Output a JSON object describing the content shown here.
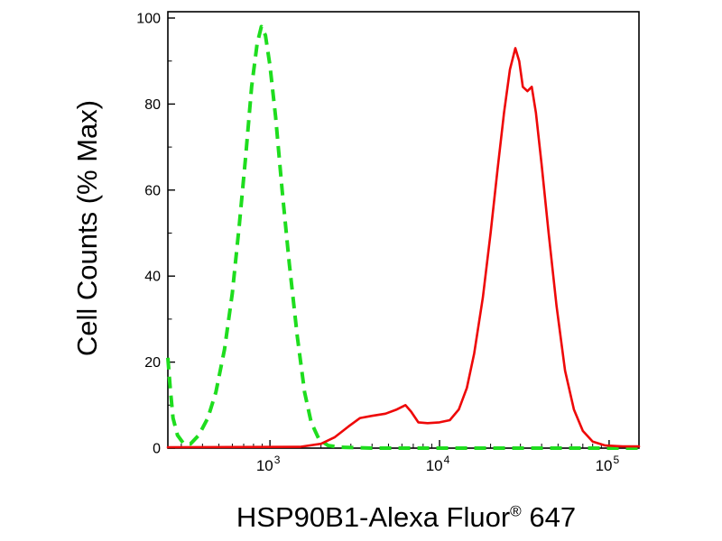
{
  "figure": {
    "background": "#ffffff",
    "axis_color": "#000000"
  },
  "chart_data": {
    "type": "line",
    "title": "",
    "xlabel": "HSP90B1-Alexa Fluor® 647",
    "xlabel_parts": {
      "main": "HSP90B1-Alexa Fluor",
      "sup": "®",
      "suffix": " 647"
    },
    "ylabel": "Cell Counts (% Max)",
    "xscale": "log",
    "xlim": [
      250,
      150000
    ],
    "ylim": [
      0,
      100
    ],
    "grid": false,
    "legend": null,
    "yticks": [
      0,
      20,
      40,
      60,
      80,
      100
    ],
    "yticks_minor": [
      10,
      30,
      50,
      70,
      90
    ],
    "xticks": [
      1000,
      10000,
      100000
    ],
    "xtick_labels": [
      "10^3",
      "10^4",
      "10^5"
    ],
    "series": [
      {
        "name": "negative-control-green-dashed",
        "color": "#1edd1e",
        "line_style": "dashed",
        "line_width": 4,
        "points": [
          [
            250,
            21
          ],
          [
            258,
            14
          ],
          [
            268,
            7
          ],
          [
            285,
            3
          ],
          [
            310,
            1
          ],
          [
            340,
            1
          ],
          [
            380,
            3
          ],
          [
            430,
            7
          ],
          [
            480,
            13
          ],
          [
            540,
            23
          ],
          [
            600,
            36
          ],
          [
            660,
            52
          ],
          [
            720,
            68
          ],
          [
            780,
            84
          ],
          [
            840,
            94
          ],
          [
            890,
            98
          ],
          [
            940,
            96
          ],
          [
            1000,
            89
          ],
          [
            1080,
            77
          ],
          [
            1180,
            60
          ],
          [
            1300,
            43
          ],
          [
            1450,
            26
          ],
          [
            1600,
            13
          ],
          [
            1750,
            6
          ],
          [
            1950,
            2
          ],
          [
            2200,
            0.6
          ],
          [
            2600,
            0.2
          ],
          [
            4000,
            0
          ],
          [
            150000,
            0
          ]
        ]
      },
      {
        "name": "hsp90b1-stained-red-solid",
        "color": "#ee0808",
        "line_style": "solid",
        "line_width": 2.6,
        "points": [
          [
            250,
            0.2
          ],
          [
            1500,
            0.3
          ],
          [
            2000,
            1
          ],
          [
            2400,
            2.5
          ],
          [
            2900,
            5
          ],
          [
            3400,
            7
          ],
          [
            4000,
            7.5
          ],
          [
            4800,
            8
          ],
          [
            5600,
            9
          ],
          [
            6300,
            10
          ],
          [
            6800,
            8.5
          ],
          [
            7500,
            6
          ],
          [
            8500,
            5.8
          ],
          [
            10000,
            6
          ],
          [
            11500,
            6.5
          ],
          [
            13000,
            9
          ],
          [
            14500,
            14
          ],
          [
            16000,
            22
          ],
          [
            18000,
            35
          ],
          [
            20000,
            50
          ],
          [
            22000,
            65
          ],
          [
            24000,
            78
          ],
          [
            26000,
            88
          ],
          [
            28000,
            93
          ],
          [
            29500,
            90
          ],
          [
            31000,
            84
          ],
          [
            33000,
            83
          ],
          [
            35000,
            84
          ],
          [
            37000,
            78
          ],
          [
            40000,
            66
          ],
          [
            44000,
            50
          ],
          [
            49000,
            33
          ],
          [
            55000,
            18
          ],
          [
            62000,
            9
          ],
          [
            70000,
            4
          ],
          [
            80000,
            1.5
          ],
          [
            95000,
            0.6
          ],
          [
            120000,
            0.4
          ],
          [
            150000,
            0.4
          ]
        ]
      }
    ]
  }
}
